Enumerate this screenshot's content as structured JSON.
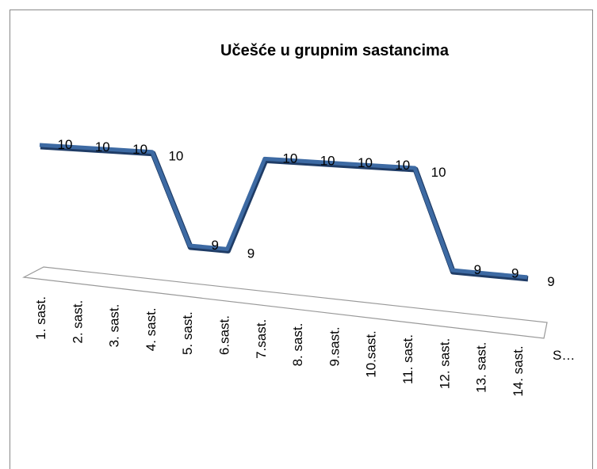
{
  "chart_data": {
    "type": "line",
    "title": "Učešće u grupnim sastancima",
    "categories": [
      "1. sast.",
      "2. sast.",
      "3. sast.",
      "4. sast.",
      "5. sast.",
      "6.sast.",
      "7.sast.",
      "8. sast.",
      "9.sast.",
      "10.sast.",
      "11. sast.",
      "12. sast.",
      "13. sast.",
      "14. sast."
    ],
    "series": [
      {
        "name": "S…",
        "color": "#3d6aa3",
        "values": [
          10,
          10,
          10,
          10,
          9,
          9,
          10,
          10,
          10,
          10,
          10,
          9,
          9,
          9
        ]
      }
    ]
  }
}
